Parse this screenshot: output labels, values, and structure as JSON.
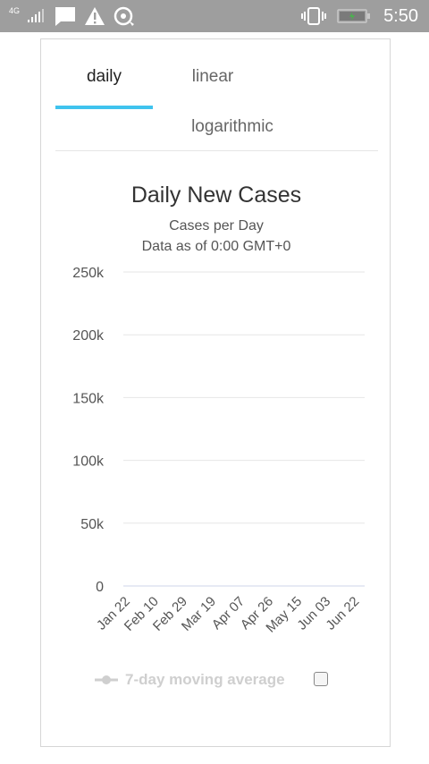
{
  "status_bar": {
    "network_label": "4G",
    "time": "5:50",
    "icons": [
      "signal-icon",
      "message-icon",
      "warning-icon",
      "sync-icon",
      "vibrate-icon",
      "battery-icon"
    ]
  },
  "tabs": [
    {
      "label": "daily",
      "active": true
    },
    {
      "label": "linear",
      "active": false
    },
    {
      "label": "logarithmic",
      "active": false
    }
  ],
  "colors": {
    "tab_indicator": "#3fc3ee",
    "bars": "#9a9a9a",
    "legend_disabled": "#cfcfcf",
    "status_bar": "#9e9e9e"
  },
  "legend": {
    "label": "7-day moving average",
    "checked": false
  },
  "chart_data": {
    "type": "bar",
    "title": "Daily New Cases",
    "subtitle": "Cases per Day",
    "note": "Data as of 0:00 GMT+0",
    "y_ticks": [
      "0",
      "50k",
      "100k",
      "150k",
      "200k",
      "250k"
    ],
    "ylim": [
      0,
      250000
    ],
    "grid": true,
    "x_tick_labels": [
      "Jan 22",
      "Feb 10",
      "Feb 29",
      "Mar 19",
      "Apr 07",
      "Apr 26",
      "May 15",
      "Jun 03",
      "Jun 22"
    ],
    "x_tick_positions": [
      0,
      19,
      38,
      57,
      76,
      95,
      114,
      133,
      152
    ],
    "values": [
      0,
      0,
      0,
      1,
      0,
      1,
      2,
      2,
      3,
      2,
      2,
      3,
      2,
      2,
      2,
      2,
      3,
      2,
      3,
      2,
      2,
      3,
      3,
      3,
      2,
      2,
      2,
      2,
      2,
      3,
      2,
      2,
      3,
      3,
      3,
      2,
      3,
      2,
      2,
      3,
      2,
      2,
      2,
      2,
      2,
      2,
      3,
      3,
      2,
      3,
      2,
      3,
      2,
      2,
      3,
      2,
      3,
      3,
      3,
      2,
      3,
      2,
      2,
      3,
      2,
      2,
      3,
      2,
      3,
      3,
      2,
      2,
      2,
      3,
      2,
      2,
      3,
      2,
      2,
      2,
      3,
      3,
      3,
      2,
      2,
      2,
      2,
      3,
      2,
      2,
      3,
      3,
      2,
      2,
      2,
      2,
      3,
      3,
      2,
      3,
      2,
      3,
      2,
      3,
      2,
      2,
      2,
      3,
      3,
      2,
      2,
      3,
      2,
      3,
      3,
      2,
      2,
      3,
      3,
      3,
      3,
      3,
      3,
      2,
      3,
      3,
      3,
      3,
      3,
      3,
      3,
      3,
      3,
      2,
      3,
      3,
      2,
      3,
      3,
      3,
      2,
      3,
      3,
      3,
      3,
      2,
      3,
      3,
      2,
      3,
      2,
      3,
      3,
      2,
      3,
      3,
      3,
      3,
      3,
      2
    ]
  }
}
